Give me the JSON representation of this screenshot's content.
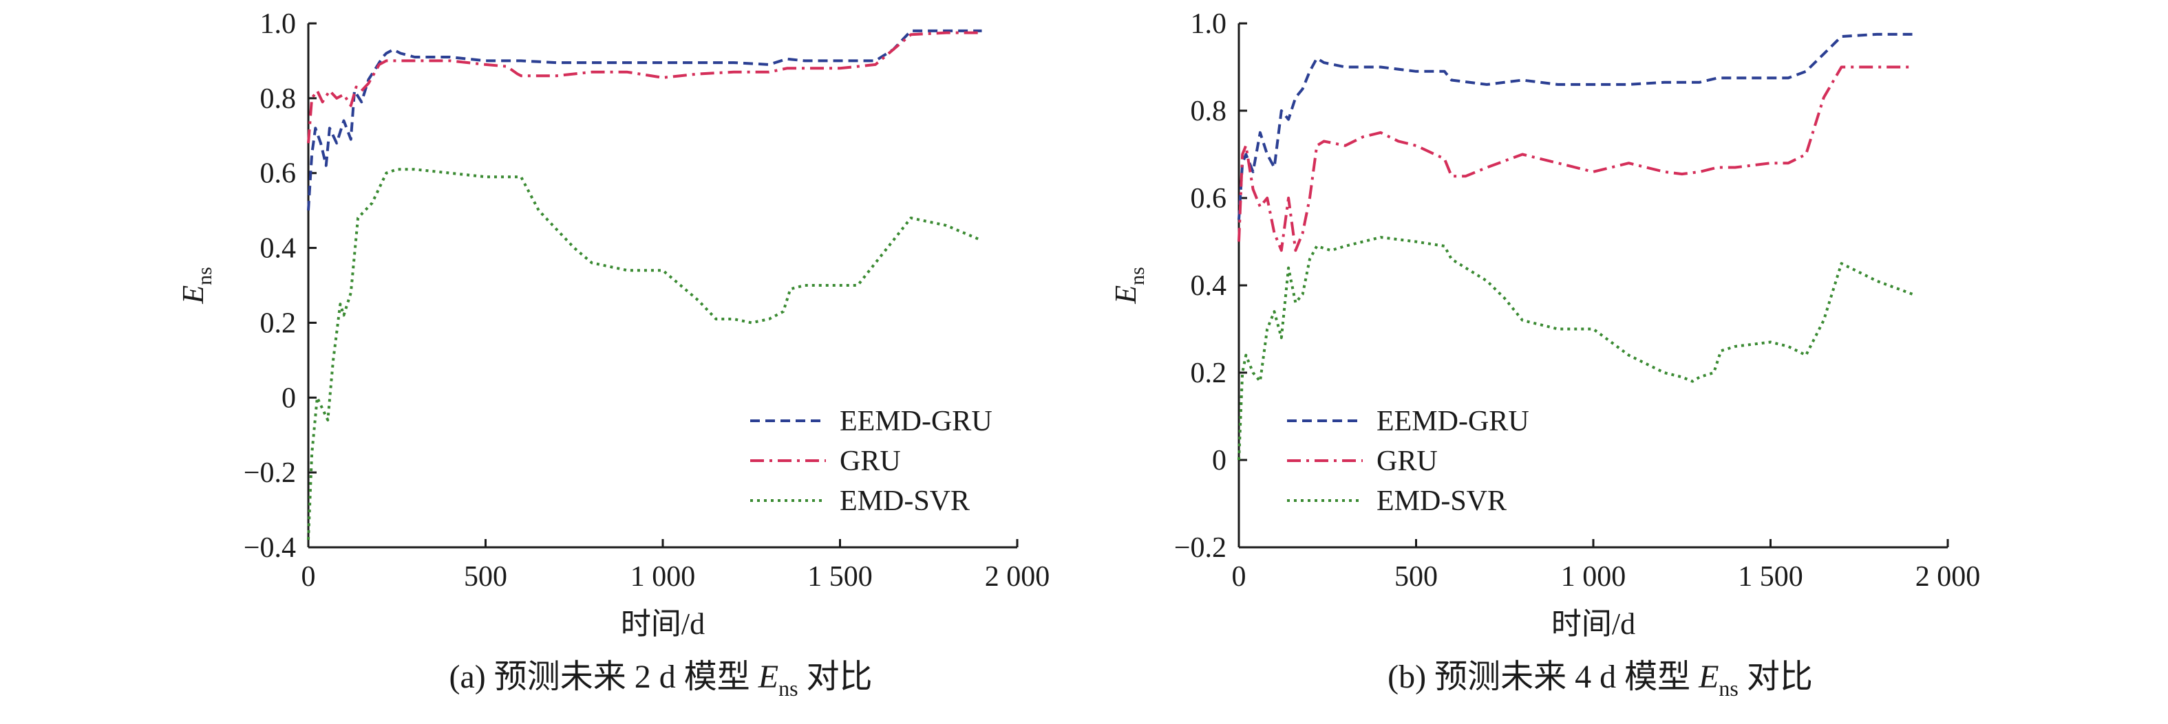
{
  "chart_data": [
    {
      "type": "line",
      "caption": "(a) 预测未来 2 d 模型 E",
      "caption_sub": "ns",
      "caption_suffix": " 对比",
      "xlabel": "时间/d",
      "ylabel": "E",
      "ylabel_sub": "ns",
      "xlim": [
        0,
        2000
      ],
      "ylim": [
        -0.4,
        1.0
      ],
      "xticks": [
        0,
        500,
        1000,
        1500,
        2000
      ],
      "xtick_labels": [
        "0",
        "500",
        "1 000",
        "1 500",
        "2 000"
      ],
      "yticks": [
        -0.4,
        -0.2,
        0,
        0.2,
        0.4,
        0.6,
        0.8,
        1.0
      ],
      "ytick_labels": [
        "−0.4",
        "−0.2",
        "0",
        "0.2",
        "0.4",
        "0.6",
        "0.8",
        "1.0"
      ],
      "legend_position": "lower-right",
      "series": [
        {
          "name": "EEMD-GRU",
          "color": "#2b3f93",
          "dash": "14,8",
          "x": [
            0,
            10,
            20,
            35,
            50,
            60,
            80,
            100,
            120,
            130,
            150,
            170,
            190,
            210,
            220,
            240,
            260,
            300,
            400,
            500,
            600,
            700,
            800,
            1000,
            1100,
            1200,
            1300,
            1350,
            1400,
            1500,
            1600,
            1650,
            1700,
            1800,
            1900
          ],
          "y": [
            0.5,
            0.65,
            0.72,
            0.68,
            0.62,
            0.72,
            0.68,
            0.74,
            0.69,
            0.82,
            0.79,
            0.85,
            0.88,
            0.91,
            0.92,
            0.93,
            0.92,
            0.91,
            0.91,
            0.9,
            0.9,
            0.895,
            0.895,
            0.895,
            0.895,
            0.895,
            0.89,
            0.905,
            0.9,
            0.9,
            0.9,
            0.93,
            0.98,
            0.98,
            0.98
          ]
        },
        {
          "name": "GRU",
          "color": "#d42e59",
          "dash": "20,8,4,8",
          "x": [
            0,
            10,
            25,
            40,
            60,
            80,
            100,
            120,
            135,
            150,
            170,
            200,
            220,
            250,
            300,
            400,
            500,
            560,
            590,
            600,
            700,
            800,
            900,
            1000,
            1050,
            1100,
            1200,
            1300,
            1350,
            1400,
            1500,
            1600,
            1650,
            1700,
            1800,
            1900
          ],
          "y": [
            0.68,
            0.8,
            0.82,
            0.79,
            0.82,
            0.8,
            0.81,
            0.78,
            0.83,
            0.82,
            0.84,
            0.89,
            0.9,
            0.9,
            0.9,
            0.9,
            0.89,
            0.885,
            0.865,
            0.86,
            0.86,
            0.87,
            0.87,
            0.855,
            0.86,
            0.865,
            0.87,
            0.87,
            0.88,
            0.88,
            0.88,
            0.89,
            0.93,
            0.97,
            0.975,
            0.975
          ]
        },
        {
          "name": "EMD-SVR",
          "color": "#3a8a32",
          "dash": "4,6",
          "x": [
            0,
            10,
            25,
            40,
            55,
            70,
            90,
            100,
            120,
            140,
            160,
            180,
            200,
            220,
            250,
            300,
            400,
            500,
            600,
            650,
            700,
            750,
            800,
            900,
            1000,
            1050,
            1100,
            1150,
            1200,
            1250,
            1300,
            1340,
            1360,
            1400,
            1500,
            1550,
            1600,
            1650,
            1700,
            1750,
            1800,
            1900
          ],
          "y": [
            -0.38,
            -0.15,
            0.0,
            -0.03,
            -0.06,
            0.1,
            0.25,
            0.22,
            0.28,
            0.48,
            0.5,
            0.52,
            0.56,
            0.6,
            0.61,
            0.61,
            0.6,
            0.59,
            0.59,
            0.5,
            0.45,
            0.4,
            0.36,
            0.34,
            0.34,
            0.3,
            0.26,
            0.21,
            0.21,
            0.2,
            0.21,
            0.23,
            0.29,
            0.3,
            0.3,
            0.3,
            0.36,
            0.42,
            0.48,
            0.47,
            0.46,
            0.42
          ]
        }
      ]
    },
    {
      "type": "line",
      "caption": "(b) 预测未来 4 d 模型 E",
      "caption_sub": "ns",
      "caption_suffix": " 对比",
      "xlabel": "时间/d",
      "ylabel": "E",
      "ylabel_sub": "ns",
      "xlim": [
        0,
        2000
      ],
      "ylim": [
        -0.2,
        1.0
      ],
      "xticks": [
        0,
        500,
        1000,
        1500,
        2000
      ],
      "xtick_labels": [
        "0",
        "500",
        "1 000",
        "1 500",
        "2 000"
      ],
      "yticks": [
        -0.2,
        0,
        0.2,
        0.4,
        0.6,
        0.8,
        1.0
      ],
      "ytick_labels": [
        "−0.2",
        "0",
        "0.2",
        "0.4",
        "0.6",
        "0.8",
        "1.0"
      ],
      "legend_position": "center-right",
      "series": [
        {
          "name": "EEMD-GRU",
          "color": "#2b3f93",
          "dash": "14,8",
          "x": [
            0,
            10,
            20,
            40,
            60,
            80,
            100,
            120,
            140,
            160,
            180,
            200,
            220,
            240,
            300,
            400,
            500,
            580,
            600,
            700,
            800,
            900,
            1000,
            1100,
            1200,
            1300,
            1350,
            1400,
            1500,
            1550,
            1600,
            1650,
            1700,
            1800,
            1900
          ],
          "y": [
            0.55,
            0.68,
            0.7,
            0.66,
            0.75,
            0.7,
            0.67,
            0.8,
            0.78,
            0.83,
            0.85,
            0.89,
            0.92,
            0.91,
            0.9,
            0.9,
            0.89,
            0.89,
            0.87,
            0.86,
            0.87,
            0.86,
            0.86,
            0.86,
            0.865,
            0.865,
            0.875,
            0.875,
            0.875,
            0.875,
            0.89,
            0.93,
            0.97,
            0.975,
            0.975
          ]
        },
        {
          "name": "GRU",
          "color": "#d42e59",
          "dash": "20,8,4,8",
          "x": [
            0,
            10,
            20,
            40,
            60,
            80,
            100,
            120,
            140,
            160,
            180,
            200,
            220,
            240,
            300,
            350,
            400,
            450,
            500,
            580,
            600,
            640,
            700,
            800,
            900,
            1000,
            1100,
            1200,
            1250,
            1300,
            1350,
            1400,
            1500,
            1550,
            1600,
            1650,
            1700,
            1800,
            1900
          ],
          "y": [
            0.5,
            0.7,
            0.72,
            0.62,
            0.58,
            0.6,
            0.52,
            0.48,
            0.6,
            0.48,
            0.52,
            0.6,
            0.72,
            0.73,
            0.72,
            0.74,
            0.75,
            0.73,
            0.72,
            0.69,
            0.65,
            0.65,
            0.67,
            0.7,
            0.68,
            0.66,
            0.68,
            0.66,
            0.655,
            0.66,
            0.67,
            0.67,
            0.68,
            0.68,
            0.7,
            0.83,
            0.9,
            0.9,
            0.9
          ]
        },
        {
          "name": "EMD-SVR",
          "color": "#3a8a32",
          "dash": "4,6",
          "x": [
            0,
            10,
            20,
            40,
            60,
            80,
            100,
            120,
            140,
            160,
            180,
            200,
            220,
            260,
            300,
            350,
            400,
            500,
            580,
            600,
            640,
            700,
            750,
            800,
            900,
            1000,
            1050,
            1100,
            1150,
            1200,
            1250,
            1280,
            1300,
            1340,
            1360,
            1400,
            1500,
            1550,
            1600,
            1650,
            1700,
            1750,
            1800,
            1900
          ],
          "y": [
            0.0,
            0.2,
            0.24,
            0.2,
            0.18,
            0.3,
            0.34,
            0.28,
            0.44,
            0.36,
            0.38,
            0.46,
            0.49,
            0.48,
            0.49,
            0.5,
            0.51,
            0.5,
            0.49,
            0.46,
            0.44,
            0.41,
            0.37,
            0.32,
            0.3,
            0.3,
            0.27,
            0.24,
            0.22,
            0.2,
            0.19,
            0.18,
            0.19,
            0.2,
            0.25,
            0.26,
            0.27,
            0.26,
            0.24,
            0.32,
            0.45,
            0.43,
            0.41,
            0.38
          ]
        }
      ]
    }
  ]
}
